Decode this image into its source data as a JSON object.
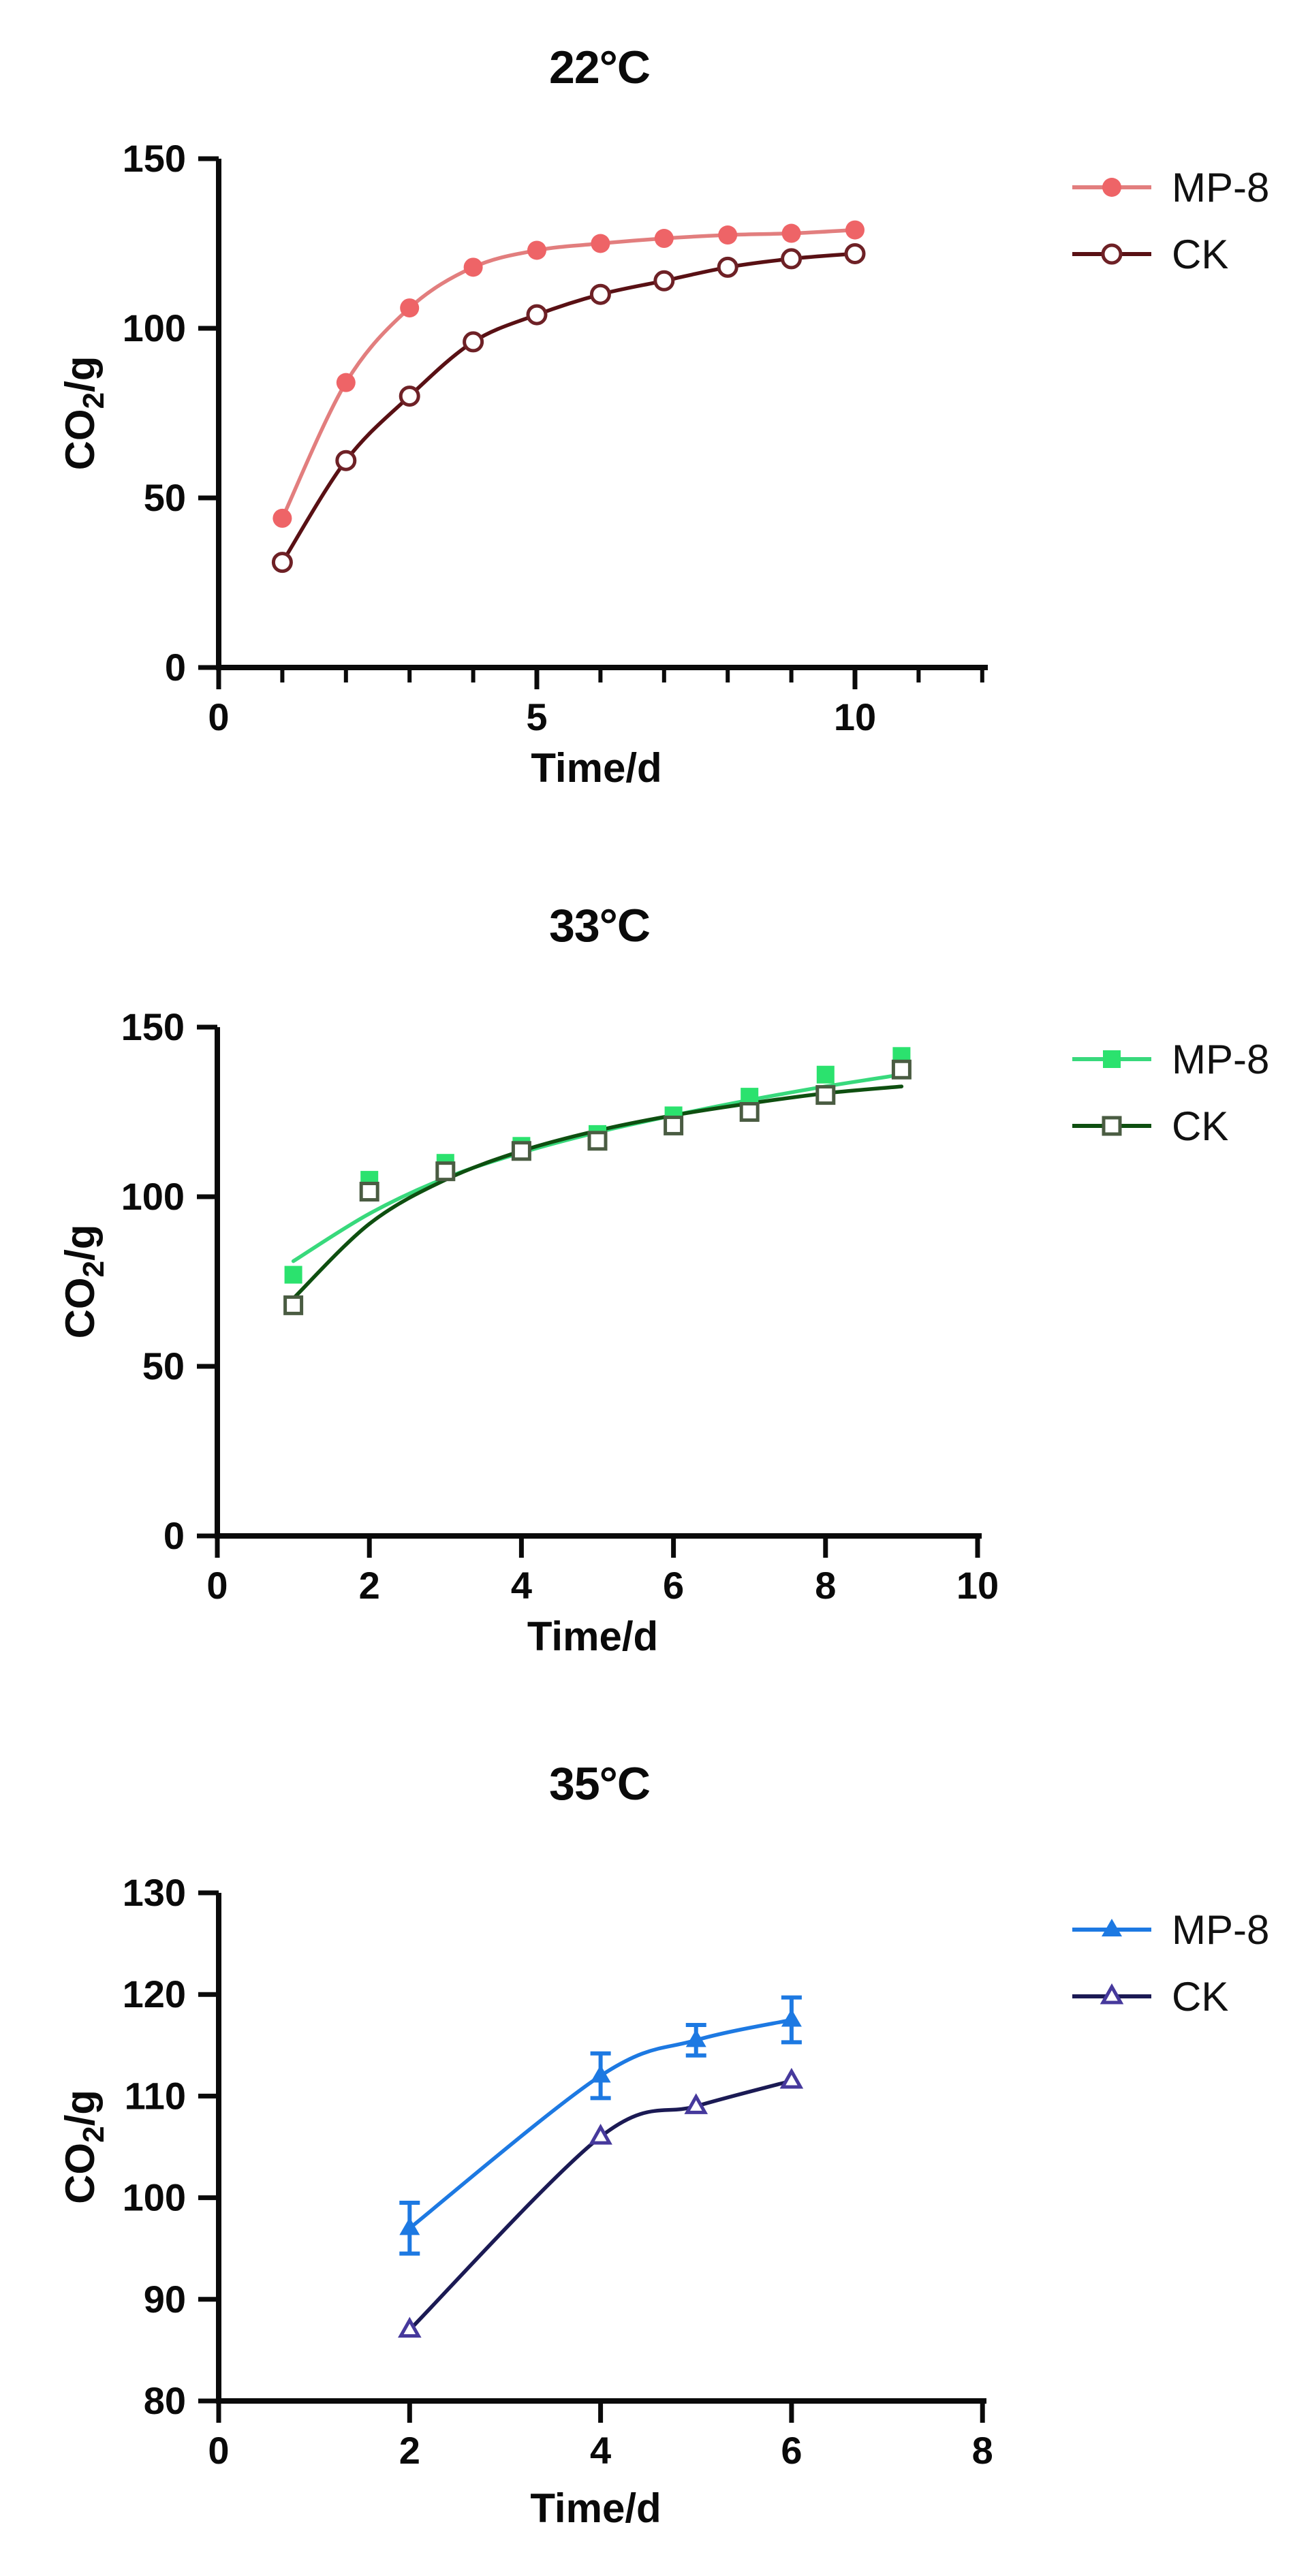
{
  "page": {
    "background": "#ffffff",
    "axis_color": "#0a0a0a"
  },
  "chart_data": [
    {
      "type": "line",
      "title": "22°C",
      "xlabel": "Time/d",
      "ylabel": "CO2/g",
      "legend_position": "right-top",
      "grid": false,
      "x_axis": {
        "min": 0,
        "max": 12,
        "labeled_ticks": [
          0,
          5,
          10
        ],
        "minor_tick_step": 1,
        "minor_max": 12
      },
      "y_axis": {
        "min": 0,
        "max": 150,
        "ticks": [
          0,
          50,
          100,
          150
        ]
      },
      "series": [
        {
          "name": "MP-8",
          "marker": "filled-circle",
          "marker_color": "#ee6467",
          "line_color": "#e27e7e",
          "x": [
            1,
            2,
            3,
            4,
            5,
            6,
            7,
            8,
            9,
            10
          ],
          "y": [
            44,
            84,
            106,
            118,
            123,
            125,
            126.5,
            127.5,
            128,
            129
          ]
        },
        {
          "name": "CK",
          "marker": "open-circle",
          "marker_color": "#6e2126",
          "line_color": "#591014",
          "x": [
            1,
            2,
            3,
            4,
            5,
            6,
            7,
            8,
            9,
            10
          ],
          "y": [
            31,
            61,
            80,
            96,
            104,
            110,
            114,
            118,
            120.5,
            122
          ]
        }
      ]
    },
    {
      "type": "line",
      "title": "33°C",
      "xlabel": "Time/d",
      "ylabel": "CO2/g",
      "legend_position": "right-top",
      "grid": false,
      "x_axis": {
        "min": 0,
        "max": 10,
        "labeled_ticks": [
          0,
          2,
          4,
          6,
          8,
          10
        ]
      },
      "y_axis": {
        "min": 0,
        "max": 150,
        "ticks": [
          0,
          50,
          100,
          150
        ]
      },
      "series": [
        {
          "name": "MP-8",
          "marker": "filled-square",
          "marker_color": "#2be26e",
          "line_color": "#38d97c",
          "x": [
            1,
            2,
            3,
            4,
            5,
            6,
            7,
            8,
            9
          ],
          "y": [
            77,
            105,
            110,
            115,
            118.5,
            124,
            129.5,
            136,
            141.5
          ],
          "curve_y": [
            81,
            95,
            105.5,
            113,
            119,
            124,
            128.5,
            132.5,
            136
          ]
        },
        {
          "name": "CK",
          "marker": "open-square",
          "marker_color": "#4a5c42",
          "line_color": "#0e4f10",
          "x": [
            1,
            2,
            3,
            4,
            5,
            6,
            7,
            8,
            9
          ],
          "y": [
            68,
            101.5,
            107.5,
            113.5,
            116.5,
            121,
            125,
            130,
            137.5
          ],
          "curve_y": [
            70,
            92,
            105,
            113.5,
            119.5,
            124,
            127.5,
            130.5,
            132.5
          ]
        }
      ]
    },
    {
      "type": "line",
      "title": "35°C",
      "xlabel": "Time/d",
      "ylabel": "CO2/g",
      "legend_position": "right-top",
      "grid": false,
      "x_axis": {
        "min": 0,
        "max": 8,
        "labeled_ticks": [
          0,
          2,
          4,
          6,
          8
        ]
      },
      "y_axis": {
        "min": 80,
        "max": 130,
        "ticks": [
          80,
          90,
          100,
          110,
          120,
          130
        ]
      },
      "series": [
        {
          "name": "MP-8",
          "marker": "filled-triangle",
          "marker_color": "#1d79e2",
          "line_color": "#1d79e2",
          "x": [
            2,
            4,
            5,
            6
          ],
          "y": [
            97,
            112,
            115.5,
            117.5
          ],
          "yerr": [
            2.5,
            2.2,
            1.5,
            2.2
          ]
        },
        {
          "name": "CK",
          "marker": "open-triangle",
          "marker_color": "#46399c",
          "line_color": "#1b1a54",
          "x": [
            2,
            4,
            5,
            6
          ],
          "y": [
            87,
            106,
            109,
            111.5
          ]
        }
      ]
    }
  ]
}
